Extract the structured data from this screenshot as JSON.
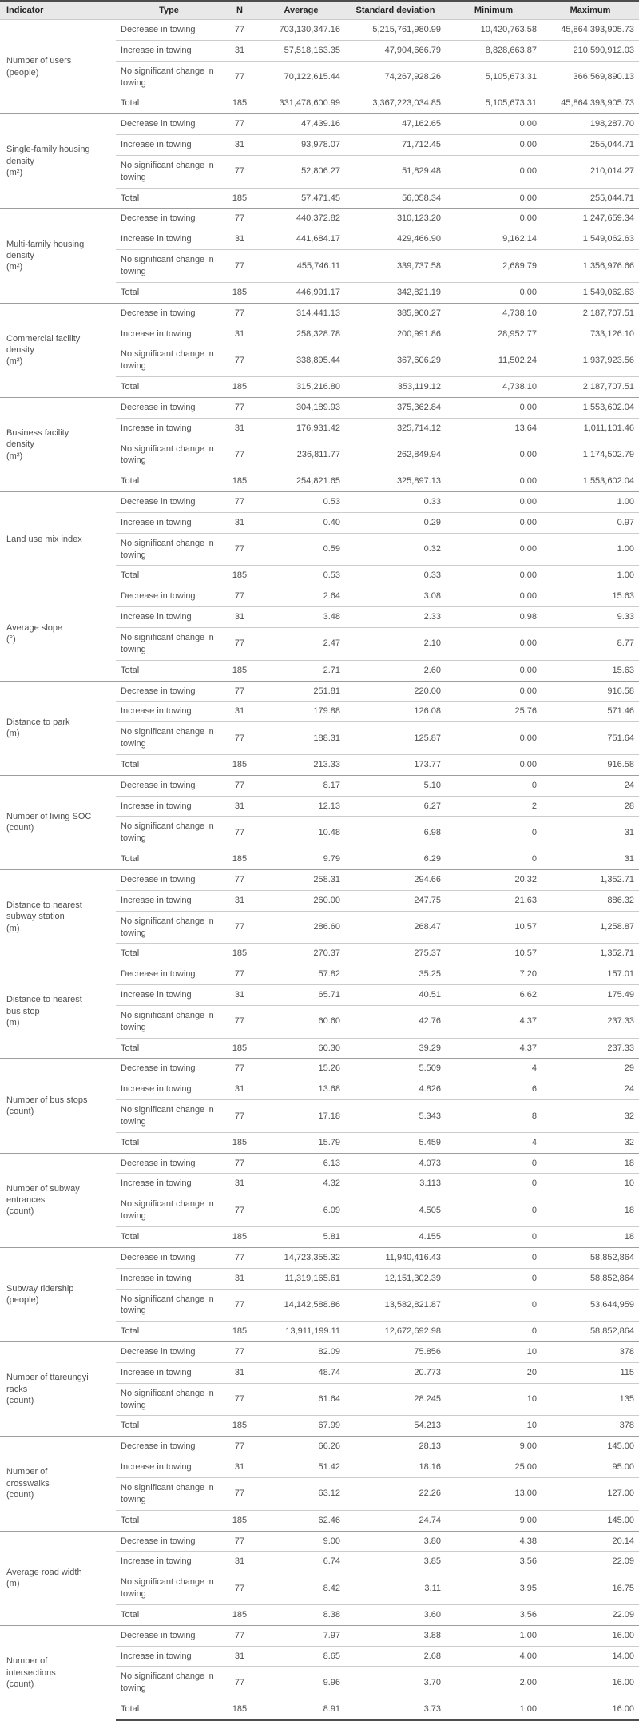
{
  "colors": {
    "header_bg": "#e8e8e8",
    "header_text": "#262626",
    "body_text": "#4f4f4f",
    "outer_border": "#4d4d4d",
    "group_divider": "#9e9e9e",
    "row_divider": "#cccccc"
  },
  "table": {
    "columns": [
      "Indicator",
      "Type",
      "N",
      "Average",
      "Standard deviation",
      "Minimum",
      "Maximum"
    ],
    "groups": [
      {
        "indicator": "Number of users\n(people)",
        "rows": [
          {
            "type": "Decrease in towing",
            "n": "77",
            "avg": "703,130,347.16",
            "sd": "5,215,761,980.99",
            "min": "10,420,763.58",
            "max": "45,864,393,905.73"
          },
          {
            "type": "Increase in towing",
            "n": "31",
            "avg": "57,518,163.35",
            "sd": "47,904,666.79",
            "min": "8,828,663.87",
            "max": "210,590,912.03"
          },
          {
            "type": "No significant change in towing",
            "n": "77",
            "avg": "70,122,615.44",
            "sd": "74,267,928.26",
            "min": "5,105,673.31",
            "max": "366,569,890.13"
          },
          {
            "type": "Total",
            "n": "185",
            "avg": "331,478,600.99",
            "sd": "3,367,223,034.85",
            "min": "5,105,673.31",
            "max": "45,864,393,905.73"
          }
        ]
      },
      {
        "indicator": "Single-family housing\ndensity\n(m²)",
        "rows": [
          {
            "type": "Decrease in towing",
            "n": "77",
            "avg": "47,439.16",
            "sd": "47,162.65",
            "min": "0.00",
            "max": "198,287.70"
          },
          {
            "type": "Increase in towing",
            "n": "31",
            "avg": "93,978.07",
            "sd": "71,712.45",
            "min": "0.00",
            "max": "255,044.71"
          },
          {
            "type": "No significant change in towing",
            "n": "77",
            "avg": "52,806.27",
            "sd": "51,829.48",
            "min": "0.00",
            "max": "210,014.27"
          },
          {
            "type": "Total",
            "n": "185",
            "avg": "57,471.45",
            "sd": "56,058.34",
            "min": "0.00",
            "max": "255,044.71"
          }
        ]
      },
      {
        "indicator": "Multi-family housing\ndensity\n(m²)",
        "rows": [
          {
            "type": "Decrease in towing",
            "n": "77",
            "avg": "440,372.82",
            "sd": "310,123.20",
            "min": "0.00",
            "max": "1,247,659.34"
          },
          {
            "type": "Increase in towing",
            "n": "31",
            "avg": "441,684.17",
            "sd": "429,466.90",
            "min": "9,162.14",
            "max": "1,549,062.63"
          },
          {
            "type": "No significant change in towing",
            "n": "77",
            "avg": "455,746.11",
            "sd": "339,737.58",
            "min": "2,689.79",
            "max": "1,356,976.66"
          },
          {
            "type": "Total",
            "n": "185",
            "avg": "446,991.17",
            "sd": "342,821.19",
            "min": "0.00",
            "max": "1,549,062.63"
          }
        ]
      },
      {
        "indicator": "Commercial facility\ndensity\n(m²)",
        "rows": [
          {
            "type": "Decrease in towing",
            "n": "77",
            "avg": "314,441.13",
            "sd": "385,900.27",
            "min": "4,738.10",
            "max": "2,187,707.51"
          },
          {
            "type": "Increase in towing",
            "n": "31",
            "avg": "258,328.78",
            "sd": "200,991.86",
            "min": "28,952.77",
            "max": "733,126.10"
          },
          {
            "type": "No significant change in towing",
            "n": "77",
            "avg": "338,895.44",
            "sd": "367,606.29",
            "min": "11,502.24",
            "max": "1,937,923.56"
          },
          {
            "type": "Total",
            "n": "185",
            "avg": "315,216.80",
            "sd": "353,119.12",
            "min": "4,738.10",
            "max": "2,187,707.51"
          }
        ]
      },
      {
        "indicator": "Business facility\ndensity\n(m²)",
        "rows": [
          {
            "type": "Decrease in towing",
            "n": "77",
            "avg": "304,189.93",
            "sd": "375,362.84",
            "min": "0.00",
            "max": "1,553,602.04"
          },
          {
            "type": "Increase in towing",
            "n": "31",
            "avg": "176,931.42",
            "sd": "325,714.12",
            "min": "13.64",
            "max": "1,011,101.46"
          },
          {
            "type": "No significant change in towing",
            "n": "77",
            "avg": "236,811.77",
            "sd": "262,849.94",
            "min": "0.00",
            "max": "1,174,502.79"
          },
          {
            "type": "Total",
            "n": "185",
            "avg": "254,821.65",
            "sd": "325,897.13",
            "min": "0.00",
            "max": "1,553,602.04"
          }
        ]
      },
      {
        "indicator": "Land use mix index",
        "rows": [
          {
            "type": "Decrease in towing",
            "n": "77",
            "avg": "0.53",
            "sd": "0.33",
            "min": "0.00",
            "max": "1.00"
          },
          {
            "type": "Increase in towing",
            "n": "31",
            "avg": "0.40",
            "sd": "0.29",
            "min": "0.00",
            "max": "0.97"
          },
          {
            "type": "No significant change in towing",
            "n": "77",
            "avg": "0.59",
            "sd": "0.32",
            "min": "0.00",
            "max": "1.00"
          },
          {
            "type": "Total",
            "n": "185",
            "avg": "0.53",
            "sd": "0.33",
            "min": "0.00",
            "max": "1.00"
          }
        ]
      },
      {
        "indicator": "Average slope\n(°)",
        "rows": [
          {
            "type": "Decrease in towing",
            "n": "77",
            "avg": "2.64",
            "sd": "3.08",
            "min": "0.00",
            "max": "15.63"
          },
          {
            "type": "Increase in towing",
            "n": "31",
            "avg": "3.48",
            "sd": "2.33",
            "min": "0.98",
            "max": "9.33"
          },
          {
            "type": "No significant change in towing",
            "n": "77",
            "avg": "2.47",
            "sd": "2.10",
            "min": "0.00",
            "max": "8.77"
          },
          {
            "type": "Total",
            "n": "185",
            "avg": "2.71",
            "sd": "2.60",
            "min": "0.00",
            "max": "15.63"
          }
        ]
      },
      {
        "indicator": "Distance to park\n(m)",
        "rows": [
          {
            "type": "Decrease in towing",
            "n": "77",
            "avg": "251.81",
            "sd": "220.00",
            "min": "0.00",
            "max": "916.58"
          },
          {
            "type": "Increase in towing",
            "n": "31",
            "avg": "179.88",
            "sd": "126.08",
            "min": "25.76",
            "max": "571.46"
          },
          {
            "type": "No significant change in towing",
            "n": "77",
            "avg": "188.31",
            "sd": "125.87",
            "min": "0.00",
            "max": "751.64"
          },
          {
            "type": "Total",
            "n": "185",
            "avg": "213.33",
            "sd": "173.77",
            "min": "0.00",
            "max": "916.58"
          }
        ]
      },
      {
        "indicator": "Number of living SOC\n(count)",
        "rows": [
          {
            "type": "Decrease in towing",
            "n": "77",
            "avg": "8.17",
            "sd": "5.10",
            "min": "0",
            "max": "24"
          },
          {
            "type": "Increase in towing",
            "n": "31",
            "avg": "12.13",
            "sd": "6.27",
            "min": "2",
            "max": "28"
          },
          {
            "type": "No significant change in towing",
            "n": "77",
            "avg": "10.48",
            "sd": "6.98",
            "min": "0",
            "max": "31"
          },
          {
            "type": "Total",
            "n": "185",
            "avg": "9.79",
            "sd": "6.29",
            "min": "0",
            "max": "31"
          }
        ]
      },
      {
        "indicator": "Distance to nearest\nsubway station\n(m)",
        "rows": [
          {
            "type": "Decrease in towing",
            "n": "77",
            "avg": "258.31",
            "sd": "294.66",
            "min": "20.32",
            "max": "1,352.71"
          },
          {
            "type": "Increase in towing",
            "n": "31",
            "avg": "260.00",
            "sd": "247.75",
            "min": "21.63",
            "max": "886.32"
          },
          {
            "type": "No significant change in towing",
            "n": "77",
            "avg": "286.60",
            "sd": "268.47",
            "min": "10.57",
            "max": "1,258.87"
          },
          {
            "type": "Total",
            "n": "185",
            "avg": "270.37",
            "sd": "275.37",
            "min": "10.57",
            "max": "1,352.71"
          }
        ]
      },
      {
        "indicator": "Distance to nearest\nbus stop\n(m)",
        "rows": [
          {
            "type": "Decrease in towing",
            "n": "77",
            "avg": "57.82",
            "sd": "35.25",
            "min": "7.20",
            "max": "157.01"
          },
          {
            "type": "Increase in towing",
            "n": "31",
            "avg": "65.71",
            "sd": "40.51",
            "min": "6.62",
            "max": "175.49"
          },
          {
            "type": "No significant change in towing",
            "n": "77",
            "avg": "60.60",
            "sd": "42.76",
            "min": "4.37",
            "max": "237.33"
          },
          {
            "type": "Total",
            "n": "185",
            "avg": "60.30",
            "sd": "39.29",
            "min": "4.37",
            "max": "237.33"
          }
        ]
      },
      {
        "indicator": "Number of bus stops\n(count)",
        "rows": [
          {
            "type": "Decrease in towing",
            "n": "77",
            "avg": "15.26",
            "sd": "5.509",
            "min": "4",
            "max": "29"
          },
          {
            "type": "Increase in towing",
            "n": "31",
            "avg": "13.68",
            "sd": "4.826",
            "min": "6",
            "max": "24"
          },
          {
            "type": "No significant change in towing",
            "n": "77",
            "avg": "17.18",
            "sd": "5.343",
            "min": "8",
            "max": "32"
          },
          {
            "type": "Total",
            "n": "185",
            "avg": "15.79",
            "sd": "5.459",
            "min": "4",
            "max": "32"
          }
        ]
      },
      {
        "indicator": "Number of subway\nentrances\n(count)",
        "rows": [
          {
            "type": "Decrease in towing",
            "n": "77",
            "avg": "6.13",
            "sd": "4.073",
            "min": "0",
            "max": "18"
          },
          {
            "type": "Increase in towing",
            "n": "31",
            "avg": "4.32",
            "sd": "3.113",
            "min": "0",
            "max": "10"
          },
          {
            "type": "No significant change in towing",
            "n": "77",
            "avg": "6.09",
            "sd": "4.505",
            "min": "0",
            "max": "18"
          },
          {
            "type": "Total",
            "n": "185",
            "avg": "5.81",
            "sd": "4.155",
            "min": "0",
            "max": "18"
          }
        ]
      },
      {
        "indicator": "Subway ridership\n(people)",
        "rows": [
          {
            "type": "Decrease in towing",
            "n": "77",
            "avg": "14,723,355.32",
            "sd": "11,940,416.43",
            "min": "0",
            "max": "58,852,864"
          },
          {
            "type": "Increase in towing",
            "n": "31",
            "avg": "11,319,165.61",
            "sd": "12,151,302.39",
            "min": "0",
            "max": "58,852,864"
          },
          {
            "type": "No significant change in towing",
            "n": "77",
            "avg": "14,142,588.86",
            "sd": "13,582,821.87",
            "min": "0",
            "max": "53,644,959"
          },
          {
            "type": "Total",
            "n": "185",
            "avg": "13,911,199.11",
            "sd": "12,672,692.98",
            "min": "0",
            "max": "58,852,864"
          }
        ]
      },
      {
        "indicator": "Number of ttareungyi\nracks\n(count)",
        "rows": [
          {
            "type": "Decrease in towing",
            "n": "77",
            "avg": "82.09",
            "sd": "75.856",
            "min": "10",
            "max": "378"
          },
          {
            "type": "Increase in towing",
            "n": "31",
            "avg": "48.74",
            "sd": "20.773",
            "min": "20",
            "max": "115"
          },
          {
            "type": "No significant change in towing",
            "n": "77",
            "avg": "61.64",
            "sd": "28.245",
            "min": "10",
            "max": "135"
          },
          {
            "type": "Total",
            "n": "185",
            "avg": "67.99",
            "sd": "54.213",
            "min": "10",
            "max": "378"
          }
        ]
      },
      {
        "indicator": "Number of\ncrosswalks\n(count)",
        "rows": [
          {
            "type": "Decrease in towing",
            "n": "77",
            "avg": "66.26",
            "sd": "28.13",
            "min": "9.00",
            "max": "145.00"
          },
          {
            "type": "Increase in towing",
            "n": "31",
            "avg": "51.42",
            "sd": "18.16",
            "min": "25.00",
            "max": "95.00"
          },
          {
            "type": "No significant change in towing",
            "n": "77",
            "avg": "63.12",
            "sd": "22.26",
            "min": "13.00",
            "max": "127.00"
          },
          {
            "type": "Total",
            "n": "185",
            "avg": "62.46",
            "sd": "24.74",
            "min": "9.00",
            "max": "145.00"
          }
        ]
      },
      {
        "indicator": "Average road width\n(m)",
        "rows": [
          {
            "type": "Decrease in towing",
            "n": "77",
            "avg": "9.00",
            "sd": "3.80",
            "min": "4.38",
            "max": "20.14"
          },
          {
            "type": "Increase in towing",
            "n": "31",
            "avg": "6.74",
            "sd": "3.85",
            "min": "3.56",
            "max": "22.09"
          },
          {
            "type": "No significant change in towing",
            "n": "77",
            "avg": "8.42",
            "sd": "3.11",
            "min": "3.95",
            "max": "16.75"
          },
          {
            "type": "Total",
            "n": "185",
            "avg": "8.38",
            "sd": "3.60",
            "min": "3.56",
            "max": "22.09"
          }
        ]
      },
      {
        "indicator": "Number of\nintersections\n(count)",
        "rows": [
          {
            "type": "Decrease in towing",
            "n": "77",
            "avg": "7.97",
            "sd": "3.88",
            "min": "1.00",
            "max": "16.00"
          },
          {
            "type": "Increase in towing",
            "n": "31",
            "avg": "8.65",
            "sd": "2.68",
            "min": "4.00",
            "max": "14.00"
          },
          {
            "type": "No significant change in towing",
            "n": "77",
            "avg": "9.96",
            "sd": "3.70",
            "min": "2.00",
            "max": "16.00"
          },
          {
            "type": "Total",
            "n": "185",
            "avg": "8.91",
            "sd": "3.73",
            "min": "1.00",
            "max": "16.00"
          }
        ]
      }
    ]
  }
}
